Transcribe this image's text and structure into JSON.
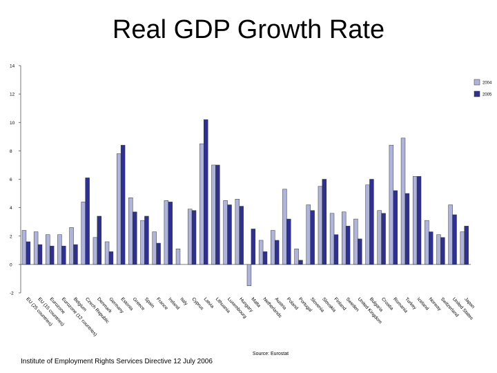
{
  "slide": {
    "title": "Real GDP Growth Rate",
    "footer": "Institute of Employment Rights Services Directive 12 July 2006"
  },
  "chart_data": {
    "type": "bar",
    "title": "Real GDP Growth Rate",
    "xlabel": "",
    "ylabel": "",
    "ylim": [
      -2,
      14
    ],
    "yticks": [
      -2,
      0,
      2,
      4,
      6,
      8,
      10,
      12,
      14
    ],
    "grid": false,
    "legend_position": "top-right",
    "source": "Source: Eurostat",
    "categories": [
      "EU (25 countries)",
      "EU (15 countries)",
      "Eurozone",
      "Eurozone (12 countries)",
      "Belgium",
      "Czech Republic",
      "Denmark",
      "Germany",
      "Estonia",
      "Greece",
      "Spain",
      "France",
      "Ireland",
      "Italy",
      "Cyprus",
      "Latvia",
      "Lithuania",
      "Luxembourg",
      "Hungary",
      "Malta",
      "Netherlands",
      "Austria",
      "Poland",
      "Portugal",
      "Slovenia",
      "Slovakia",
      "Finland",
      "Sweden",
      "United Kingdom",
      "Bulgaria",
      "Croatia",
      "Romania",
      "Turkey",
      "Iceland",
      "Norway",
      "Switzerland",
      "United States",
      "Japan"
    ],
    "series": [
      {
        "name": "2004",
        "color": "#aeb4dc",
        "values": [
          2.4,
          2.3,
          2.1,
          2.1,
          2.6,
          4.4,
          1.9,
          1.6,
          7.8,
          4.7,
          3.1,
          2.3,
          4.5,
          1.1,
          3.9,
          8.5,
          7.0,
          4.5,
          4.6,
          -1.5,
          1.7,
          2.4,
          5.3,
          1.1,
          4.2,
          5.5,
          3.6,
          3.7,
          3.2,
          5.6,
          3.8,
          8.4,
          8.9,
          6.2,
          3.1,
          2.1,
          4.2,
          2.3
        ]
      },
      {
        "name": "2005",
        "color": "#2e3192",
        "values": [
          1.6,
          1.4,
          1.3,
          1.3,
          1.4,
          6.1,
          3.4,
          0.9,
          8.4,
          3.7,
          3.4,
          1.5,
          4.4,
          0.0,
          3.8,
          10.2,
          7.0,
          4.2,
          4.1,
          2.5,
          0.9,
          1.7,
          3.2,
          0.3,
          3.8,
          6.0,
          2.1,
          2.7,
          1.8,
          6.0,
          3.6,
          5.2,
          5.0,
          6.2,
          2.3,
          1.9,
          3.5,
          2.7
        ]
      }
    ]
  }
}
